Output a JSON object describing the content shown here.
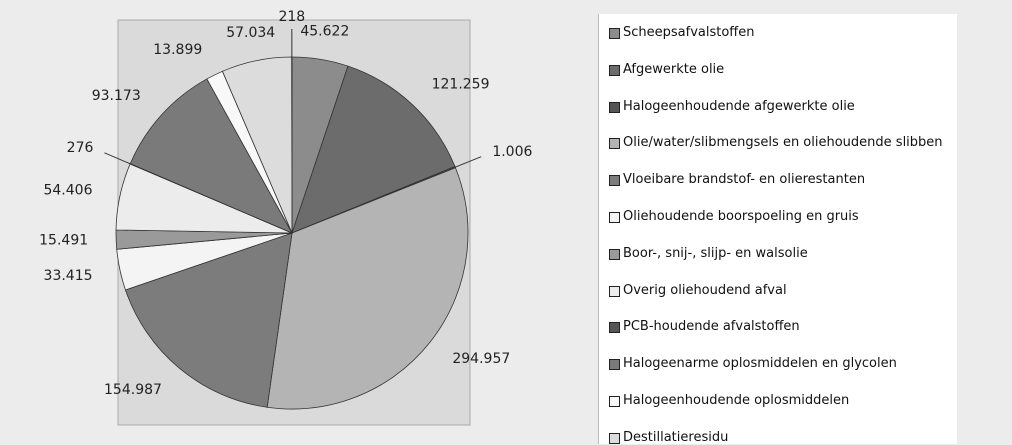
{
  "chart_data": {
    "type": "pie",
    "categories": [
      "Scheepsafvalstoffen",
      "Afgewerkte olie",
      "Halogeenhoudende afgewerkte olie",
      "Olie/water/slibmengsels en oliehoudende slibben",
      "Vloeibare brandstof- en olierestanten",
      "Oliehoudende boorspoeling en gruis",
      "Boor-, snij-, slijp- en walsolie",
      "Overig oliehoudend afval",
      "PCB-houdende afvalstoffen",
      "Halogeenarme oplosmiddelen en glycolen",
      "Halogeenhoudende oplosmiddelen",
      "Destillatieresidu",
      null
    ],
    "values": [
      45622,
      121259,
      1006,
      294957,
      154987,
      33415,
      15491,
      54406,
      276,
      93173,
      13899,
      57034,
      218
    ],
    "value_labels": [
      "45.622",
      "121.259",
      "1.006",
      "294.957",
      "154.987",
      "33.415",
      "15.491",
      "54.406",
      "276",
      "93.173",
      "13.899",
      "57.034",
      "218"
    ],
    "colors": [
      "#8c8c8c",
      "#6c6c6c",
      "#555555",
      "#b4b4b4",
      "#7c7c7c",
      "#f4f4f4",
      "#9a9a9a",
      "#ececec",
      "#555555",
      "#7a7a7a",
      "#f8f8f8",
      "#dcdcdc",
      "#666666"
    ]
  }
}
